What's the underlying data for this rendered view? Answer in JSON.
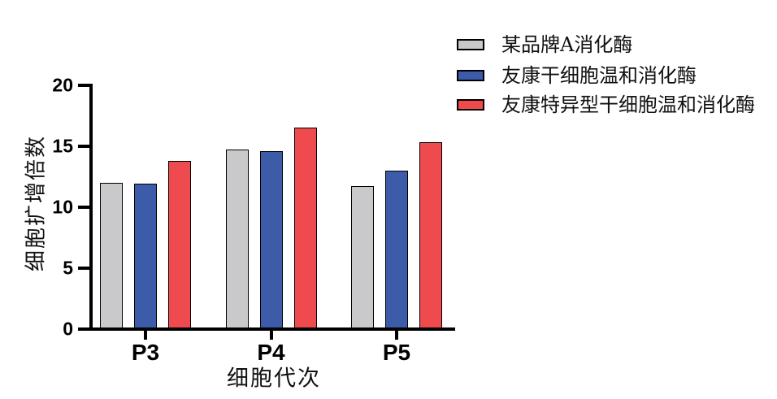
{
  "chart_data": {
    "type": "bar",
    "title": "",
    "categories": [
      "P3",
      "P4",
      "P5"
    ],
    "series": [
      {
        "name": "某品牌A消化酶",
        "color": "#c9c9cb",
        "values": [
          12.0,
          14.7,
          11.7
        ]
      },
      {
        "name": "友康干细胞温和消化酶",
        "color": "#3c5ba9",
        "values": [
          11.9,
          14.6,
          13.0
        ]
      },
      {
        "name": "友康特异型干细胞温和消化酶",
        "color": "#ef4a4e",
        "values": [
          13.8,
          16.5,
          15.3
        ]
      }
    ],
    "xlabel": "细胞代次",
    "ylabel": "细胞扩增倍数",
    "ylim": [
      0,
      20
    ],
    "yticks": [
      0,
      5,
      10,
      15,
      20
    ],
    "grid": false,
    "legend_position": "top-right",
    "bar_border_color": "#000000",
    "axis_color": "#000000",
    "background": "#ffffff"
  }
}
